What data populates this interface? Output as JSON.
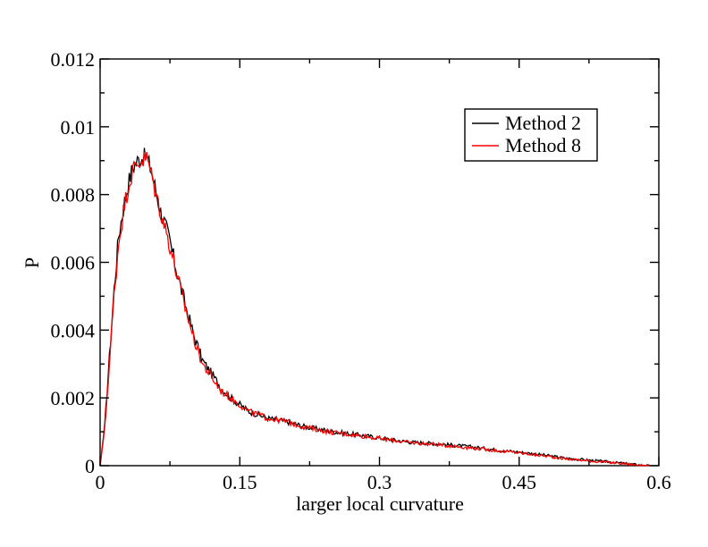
{
  "chart_data": {
    "type": "line",
    "title": "",
    "xlabel": "larger local curvature",
    "ylabel": "P",
    "xlim": [
      0,
      0.6
    ],
    "ylim": [
      0,
      0.012
    ],
    "x_ticks": [
      0,
      0.15,
      0.3,
      0.45,
      0.6
    ],
    "x_tick_labels": [
      "0",
      "0.15",
      "0.3",
      "0.45",
      "0.6"
    ],
    "y_ticks": [
      0,
      0.002,
      0.004,
      0.006,
      0.008,
      0.01,
      0.012
    ],
    "y_tick_labels": [
      "0",
      "0.002",
      "0.004",
      "0.006",
      "0.008",
      "0.01",
      "0.012"
    ],
    "grid": false,
    "legend_position": "top-right",
    "series": [
      {
        "name": "Method 2",
        "color": "#000000",
        "x": [
          0,
          0.005,
          0.01,
          0.015,
          0.02,
          0.025,
          0.03,
          0.035,
          0.04,
          0.045,
          0.05,
          0.055,
          0.06,
          0.065,
          0.07,
          0.075,
          0.08,
          0.09,
          0.1,
          0.11,
          0.12,
          0.13,
          0.14,
          0.15,
          0.16,
          0.17,
          0.18,
          0.2,
          0.22,
          0.25,
          0.28,
          0.3,
          0.33,
          0.36,
          0.4,
          0.43,
          0.45,
          0.48,
          0.5,
          0.53,
          0.55,
          0.57,
          0.58,
          0.59
        ],
        "y": [
          0,
          0.0012,
          0.0032,
          0.0052,
          0.0068,
          0.0076,
          0.0083,
          0.0088,
          0.009,
          0.0091,
          0.0091,
          0.0087,
          0.0081,
          0.0075,
          0.0071,
          0.0066,
          0.006,
          0.0049,
          0.0039,
          0.0031,
          0.0027,
          0.0023,
          0.002,
          0.0018,
          0.0016,
          0.0015,
          0.0014,
          0.0013,
          0.00115,
          0.001,
          0.0009,
          0.00082,
          0.0007,
          0.00065,
          0.00055,
          0.00045,
          0.0004,
          0.0003,
          0.00022,
          0.00015,
          0.0001,
          5e-05,
          2e-05,
          0.0
        ]
      },
      {
        "name": "Method 8",
        "color": "#ff0000",
        "x": [
          0,
          0.005,
          0.01,
          0.015,
          0.02,
          0.025,
          0.03,
          0.035,
          0.04,
          0.045,
          0.05,
          0.055,
          0.06,
          0.065,
          0.07,
          0.075,
          0.08,
          0.09,
          0.1,
          0.11,
          0.12,
          0.13,
          0.14,
          0.15,
          0.16,
          0.17,
          0.18,
          0.2,
          0.22,
          0.25,
          0.28,
          0.3,
          0.33,
          0.36,
          0.4,
          0.43,
          0.45,
          0.48,
          0.5,
          0.53,
          0.55,
          0.57,
          0.58,
          0.59
        ],
        "y": [
          0,
          0.0011,
          0.003,
          0.005,
          0.0066,
          0.0075,
          0.0082,
          0.0087,
          0.0089,
          0.009,
          0.0091,
          0.0086,
          0.008,
          0.0075,
          0.007,
          0.0065,
          0.0059,
          0.0048,
          0.0038,
          0.003,
          0.0026,
          0.0022,
          0.002,
          0.0018,
          0.0016,
          0.0015,
          0.0014,
          0.0013,
          0.00113,
          0.00098,
          0.00088,
          0.0008,
          0.00069,
          0.00063,
          0.00052,
          0.00043,
          0.00038,
          0.00028,
          0.0002,
          0.00013,
          9e-05,
          4e-05,
          1e-05,
          0.0
        ]
      }
    ]
  }
}
